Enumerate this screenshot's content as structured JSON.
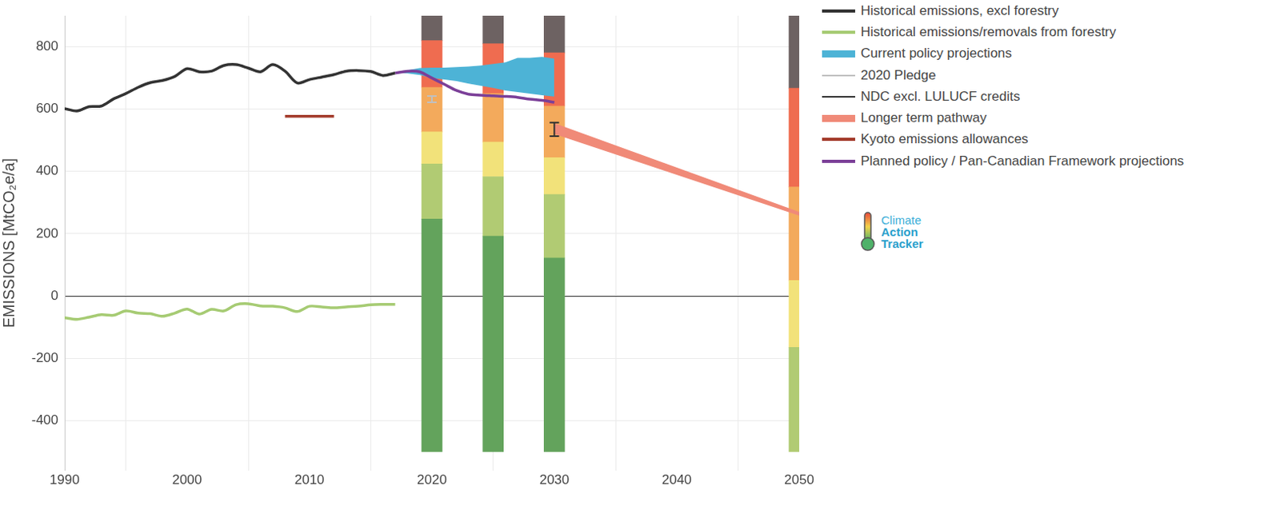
{
  "chart_data": {
    "type": "line",
    "y_label": "EMISSIONS [MtCO₂e/a]",
    "xlim": [
      1990,
      2050
    ],
    "xticks": [
      1990,
      2000,
      2010,
      2020,
      2030,
      2040,
      2050
    ],
    "ylim": [
      -560,
      900
    ],
    "yticks": [
      -400,
      -200,
      0,
      200,
      400,
      600,
      800
    ],
    "grid": true,
    "legend": "right",
    "series": [
      {
        "name": "Historical emissions, excl forestry",
        "color": "#333333",
        "type": "line",
        "x": [
          1990,
          1991,
          1992,
          1993,
          1994,
          1995,
          1996,
          1997,
          1998,
          1999,
          2000,
          2001,
          2002,
          2003,
          2004,
          2005,
          2006,
          2007,
          2008,
          2009,
          2010,
          2011,
          2012,
          2013,
          2014,
          2015,
          2016,
          2017
        ],
        "values": [
          602,
          594,
          608,
          610,
          633,
          650,
          670,
          685,
          692,
          705,
          730,
          720,
          722,
          740,
          743,
          732,
          720,
          743,
          722,
          684,
          695,
          703,
          711,
          722,
          724,
          721,
          708,
          716
        ]
      },
      {
        "name": "Historical emissions/removals from forestry",
        "color": "#a6cb73",
        "type": "line",
        "x": [
          1990,
          1991,
          1992,
          1993,
          1994,
          1995,
          1996,
          1997,
          1998,
          1999,
          2000,
          2001,
          2002,
          2003,
          2004,
          2005,
          2006,
          2007,
          2008,
          2009,
          2010,
          2011,
          2012,
          2013,
          2014,
          2015,
          2016,
          2017
        ],
        "values": [
          -70,
          -75,
          -68,
          -60,
          -62,
          -48,
          -55,
          -57,
          -65,
          -55,
          -42,
          -58,
          -43,
          -48,
          -28,
          -25,
          -32,
          -33,
          -38,
          -50,
          -33,
          -35,
          -38,
          -35,
          -33,
          -28,
          -27,
          -27
        ]
      },
      {
        "name": "Current policy projections",
        "color": "#4db3d6",
        "type": "band",
        "x": [
          2017,
          2018,
          2019,
          2020,
          2021,
          2022,
          2023,
          2024,
          2025,
          2026,
          2027,
          2028,
          2029,
          2030
        ],
        "low": [
          716,
          715,
          710,
          700,
          695,
          690,
          682,
          675,
          668,
          660,
          655,
          650,
          645,
          640
        ],
        "high": [
          716,
          725,
          732,
          733,
          733,
          735,
          737,
          740,
          745,
          750,
          765,
          765,
          768,
          762
        ]
      },
      {
        "name": "2020 Pledge",
        "color": "#c0c0c0",
        "type": "error_bar",
        "x": [
          2020
        ],
        "low": [
          622
        ],
        "high": [
          642
        ]
      },
      {
        "name": "NDC excl. LULUCF credits",
        "color": "#333333",
        "type": "error_bar",
        "x": [
          2030
        ],
        "low": [
          513
        ],
        "high": [
          557
        ]
      },
      {
        "name": "Longer term pathway",
        "color": "#f08a78",
        "type": "band",
        "x": [
          2030,
          2050
        ],
        "low": [
          520,
          258
        ],
        "high": [
          555,
          270
        ]
      },
      {
        "name": "Kyoto emissions allowances",
        "color": "#a33a2a",
        "type": "line",
        "x": [
          2008,
          2012
        ],
        "values": [
          577,
          577
        ]
      },
      {
        "name": "Planned policy / Pan-Canadian Framework projections",
        "color": "#7b3f98",
        "type": "line",
        "x": [
          2017,
          2018,
          2019,
          2020,
          2021,
          2022,
          2023,
          2024,
          2025,
          2026,
          2027,
          2028,
          2029,
          2030
        ],
        "values": [
          716,
          722,
          720,
          700,
          680,
          660,
          648,
          645,
          643,
          641,
          638,
          632,
          628,
          622
        ]
      }
    ],
    "rating_bars": {
      "type": "bar",
      "x": [
        2020,
        2025,
        2030,
        2050
      ],
      "segments": [
        {
          "color": "#63a35c",
          "values": [
            [
              -500,
              247
            ],
            [
              -500,
              192
            ],
            [
              -500,
              122
            ],
            null
          ]
        },
        {
          "color": "#b1cb73",
          "values": [
            [
              247,
              424
            ],
            [
              192,
              383
            ],
            [
              122,
              326
            ],
            [
              -500,
              -165
            ]
          ]
        },
        {
          "color": "#f2e27a",
          "values": [
            [
              424,
              527
            ],
            [
              383,
              494
            ],
            [
              326,
              444
            ],
            [
              -165,
              50
            ]
          ]
        },
        {
          "color": "#f3aa5c",
          "values": [
            [
              527,
              670
            ],
            [
              494,
              650
            ],
            [
              444,
              610
            ],
            [
              50,
              350
            ]
          ]
        },
        {
          "color": "#ef6c50",
          "values": [
            [
              670,
              820
            ],
            [
              650,
              810
            ],
            [
              610,
              781
            ],
            [
              350,
              667
            ]
          ]
        },
        {
          "color": "#6d6262",
          "values": [
            [
              820,
              900
            ],
            [
              810,
              900
            ],
            [
              781,
              900
            ],
            [
              667,
              900
            ]
          ]
        }
      ]
    },
    "logo": [
      "Climate",
      "Action",
      "Tracker"
    ]
  }
}
